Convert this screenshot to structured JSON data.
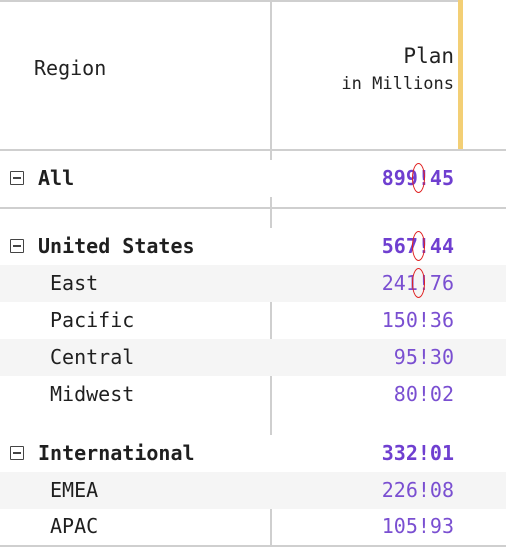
{
  "header": {
    "region_label": "Region",
    "plan_label": "Plan",
    "plan_unit": "in Millions"
  },
  "rows": [
    {
      "label": "All",
      "value": "899!45",
      "level": "group",
      "expanded": true
    },
    {
      "label": "United States",
      "value": "567!44",
      "level": "group",
      "expanded": true
    },
    {
      "label": "East",
      "value": "241!76",
      "level": "child"
    },
    {
      "label": "Pacific",
      "value": "150!36",
      "level": "child"
    },
    {
      "label": "Central",
      "value": "95!30",
      "level": "child"
    },
    {
      "label": "Midwest",
      "value": "80!02",
      "level": "child"
    },
    {
      "label": "International",
      "value": "332!01",
      "level": "group",
      "expanded": true
    },
    {
      "label": "EMEA",
      "value": "226!08",
      "level": "child"
    },
    {
      "label": "APAC",
      "value": "105!93",
      "level": "child"
    }
  ],
  "colors": {
    "value_text": "#7a4fd1",
    "grid_line": "#cfcfcf",
    "accent_bar": "#f3cf75",
    "annotation_circle": "#e02020"
  },
  "icons": {
    "toggle": "minus-square-icon"
  }
}
